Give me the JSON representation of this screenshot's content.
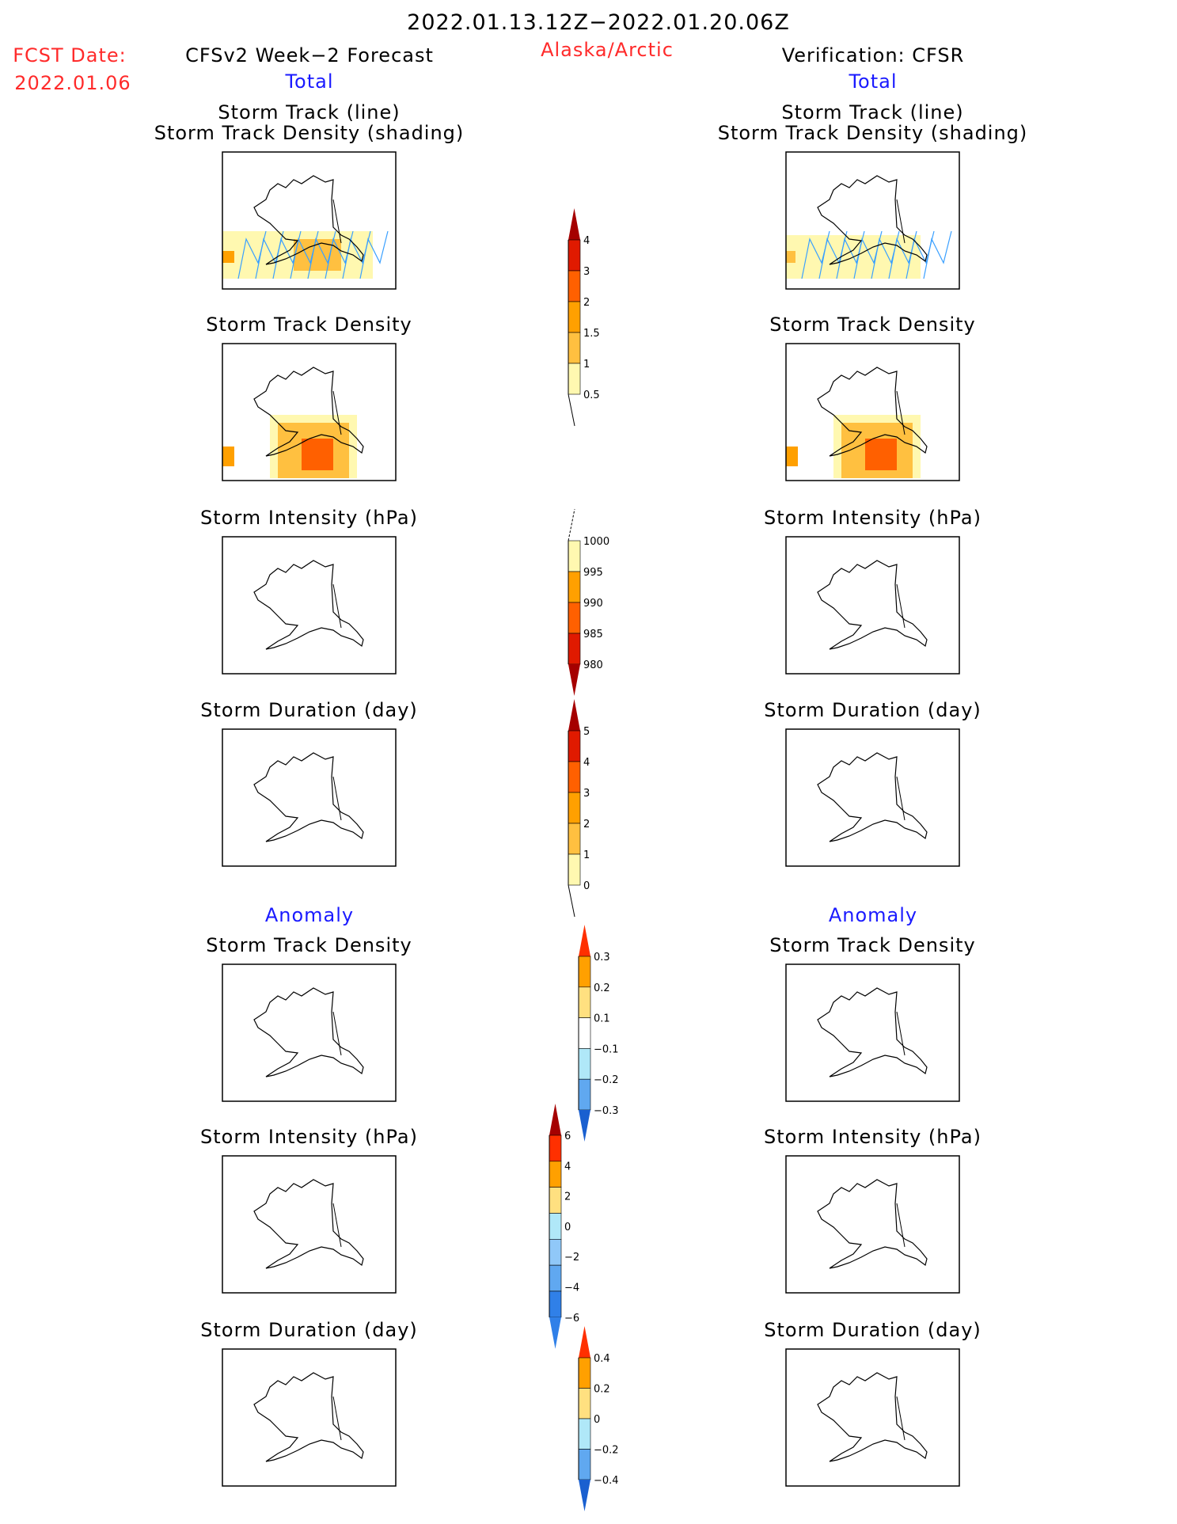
{
  "header": {
    "title": "2022.01.13.12Z−2022.01.20.06Z",
    "fcst_label": "FCST Date:",
    "fcst_date": "2022.01.06",
    "region": "Alaska/Arctic",
    "left_title": "CFSv2 Week−2 Forecast",
    "right_title": "Verification: CFSR",
    "total_label": "Total",
    "anomaly_label": "Anomaly"
  },
  "panels": {
    "titles": [
      [
        "Storm Track (line)",
        "Storm Track Density (shading)"
      ],
      [
        "Storm Track Density"
      ],
      [
        "Storm Intensity (hPa)"
      ],
      [
        "Storm Duration (day)"
      ],
      [
        "Storm Track Density"
      ],
      [
        "Storm Intensity (hPa)"
      ],
      [
        "Storm Duration (day)"
      ]
    ]
  },
  "chart_data": [
    {
      "type": "heatmap",
      "name": "total-storm-track-density",
      "labels": [
        "4",
        "3",
        "2",
        "1.5",
        "1",
        "0.5"
      ],
      "colors": [
        "#a50000",
        "#e01a00",
        "#ff6000",
        "#ffa000",
        "#ffc040",
        "#fff8b0"
      ]
    },
    {
      "type": "heatmap",
      "name": "total-storm-intensity",
      "labels": [
        "1000",
        "995",
        "990",
        "985",
        "980"
      ],
      "colors": [
        "#fff8b0",
        "#ffa000",
        "#ff6000",
        "#e01a00",
        "#a50000"
      ]
    },
    {
      "type": "heatmap",
      "name": "total-storm-duration",
      "labels": [
        "5",
        "4",
        "3",
        "2",
        "1",
        "0"
      ],
      "colors": [
        "#a50000",
        "#e01a00",
        "#ff6000",
        "#ffa000",
        "#ffc040",
        "#fff8b0"
      ]
    },
    {
      "type": "heatmap",
      "name": "anomaly-storm-track-density",
      "labels": [
        "0.3",
        "0.2",
        "0.1",
        "−0.1",
        "−0.2",
        "−0.3"
      ],
      "colors": [
        "#ff3000",
        "#ffa000",
        "#ffe080",
        "#ffffff",
        "#b0e8f8",
        "#60a8f0",
        "#1a60d0"
      ]
    },
    {
      "type": "heatmap",
      "name": "anomaly-storm-intensity",
      "labels": [
        "6",
        "4",
        "2",
        "0",
        "−2",
        "−4",
        "−6"
      ],
      "colors": [
        "#a50000",
        "#ff3000",
        "#ffa000",
        "#ffe080",
        "#b0e8f8",
        "#90c8f8",
        "#60a8f0",
        "#3080e8",
        "#3080e8"
      ]
    },
    {
      "type": "heatmap",
      "name": "anomaly-storm-duration",
      "labels": [
        "0.4",
        "0.2",
        "0",
        "−0.2",
        "−0.4"
      ],
      "colors": [
        "#ff3000",
        "#ffa000",
        "#ffe080",
        "#b0e8f8",
        "#60a8f0",
        "#1a60d0"
      ]
    }
  ]
}
